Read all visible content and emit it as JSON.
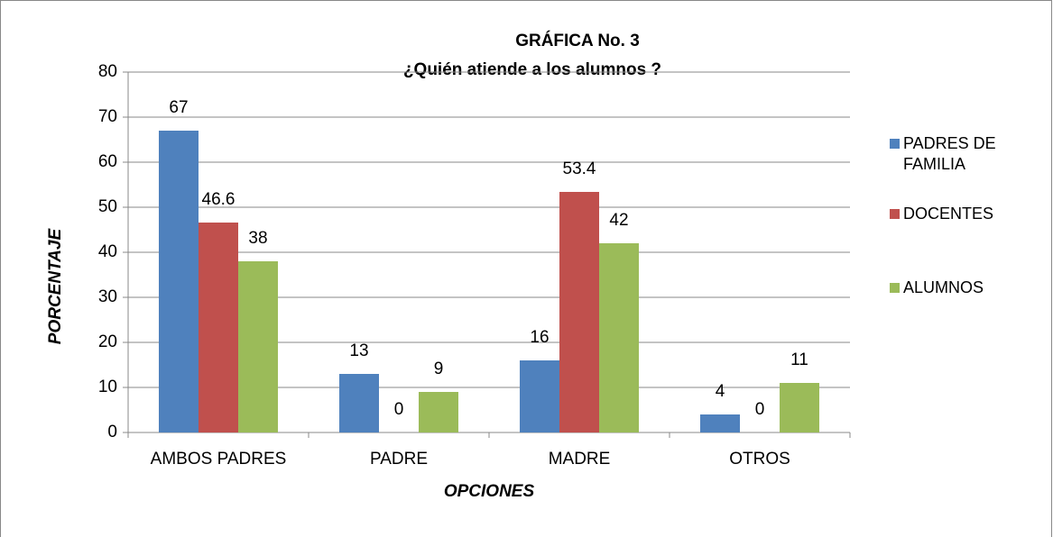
{
  "chart_data": {
    "type": "bar",
    "title": "GRÁFICA No. 3",
    "subtitle": "¿Quién atiende a los alumnos ?",
    "x_label": "OPCIONES",
    "y_label": "PORCENTAJE",
    "categories": [
      "AMBOS PADRES",
      "PADRE",
      "MADRE",
      "OTROS"
    ],
    "series": [
      {
        "name": "PADRES DE FAMILIA",
        "color": "#4f81bd",
        "values": [
          67,
          13,
          16,
          4
        ]
      },
      {
        "name": "DOCENTES",
        "color": "#c0504d",
        "values": [
          46.6,
          0,
          53.4,
          0
        ]
      },
      {
        "name": "ALUMNOS",
        "color": "#9bbb59",
        "values": [
          38,
          9,
          42,
          11
        ]
      }
    ],
    "ylim": [
      0,
      80
    ],
    "yticks": [
      0,
      10,
      20,
      30,
      40,
      50,
      60,
      70,
      80
    ],
    "grid": true,
    "legend": "right"
  }
}
